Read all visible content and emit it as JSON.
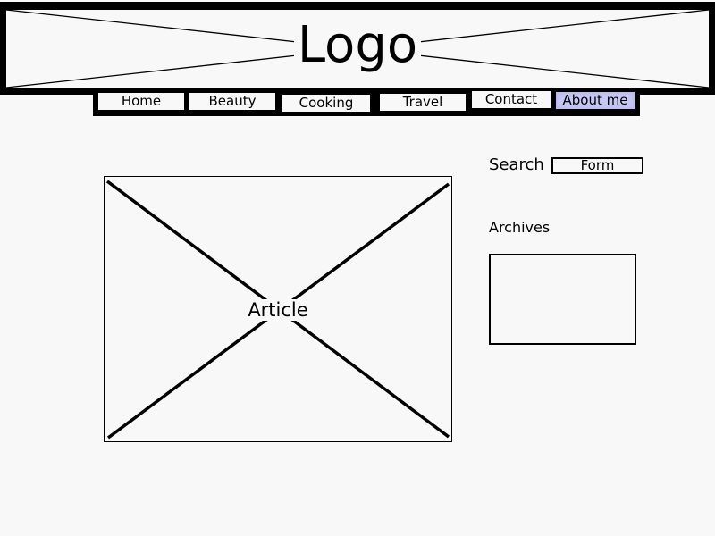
{
  "header": {
    "logo_text": "Logo"
  },
  "nav": {
    "items": [
      {
        "label": "Home",
        "active": false
      },
      {
        "label": "Beauty",
        "active": false
      },
      {
        "label": "Cooking",
        "active": false
      },
      {
        "label": "Travel",
        "active": false
      },
      {
        "label": "Contact",
        "active": false
      },
      {
        "label": "About me",
        "active": true
      }
    ],
    "active_color": "#c8c8f5"
  },
  "search": {
    "label": "Search",
    "form_text": "Form"
  },
  "archives": {
    "title": "Archives"
  },
  "article": {
    "label": "Article"
  },
  "colors": {
    "background": "#f9f8f9",
    "stroke": "#000000"
  }
}
